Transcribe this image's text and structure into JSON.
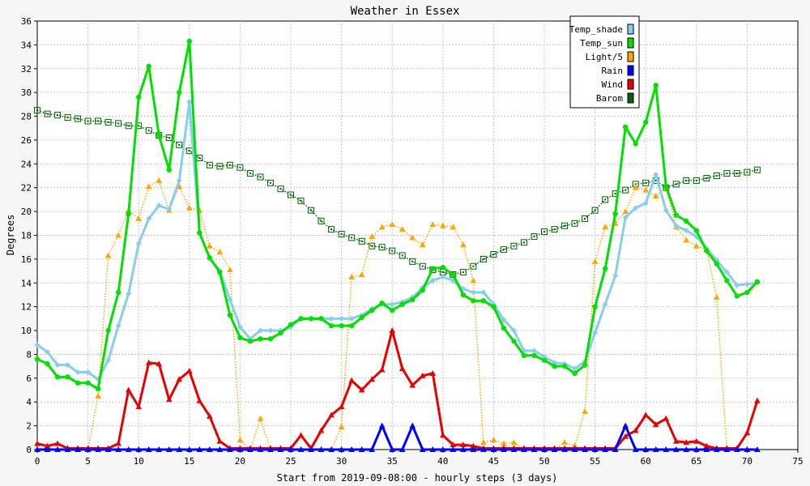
{
  "chart_data": {
    "type": "line",
    "title": "Weather in Essex",
    "xlabel": "Start from 2019-09-08:00 - hourly steps (3 days)",
    "ylabel": "Degrees",
    "xlim": [
      0,
      75
    ],
    "ylim": [
      0,
      36
    ],
    "xticks": [
      0,
      5,
      10,
      15,
      20,
      25,
      30,
      35,
      40,
      45,
      50,
      55,
      60,
      65,
      70,
      75
    ],
    "yticks": [
      0,
      2,
      4,
      6,
      8,
      10,
      12,
      14,
      16,
      18,
      20,
      22,
      24,
      26,
      28,
      30,
      32,
      34,
      36
    ],
    "grid": true,
    "legend_position": "top-right",
    "series": [
      {
        "name": "Temp_shade",
        "color": "#87ceeb",
        "marker": "diamond",
        "line": "solid",
        "width": 3,
        "values": [
          8.8,
          8.2,
          7.1,
          7.1,
          6.5,
          6.5,
          5.9,
          7.5,
          10.4,
          13.1,
          17.3,
          19.4,
          20.5,
          20.2,
          22.6,
          29.2,
          18.2,
          16.1,
          15.0,
          12.6,
          10.3,
          9.3,
          10.0,
          10.0,
          10.0,
          10.3,
          11.0,
          11.0,
          11.0,
          11.0,
          11.0,
          11.0,
          11.3,
          11.8,
          12.2,
          12.2,
          12.4,
          12.8,
          13.6,
          14.2,
          14.5,
          14.2,
          13.5,
          13.2,
          13.2,
          12.2,
          10.9,
          10.0,
          8.3,
          8.3,
          7.8,
          7.3,
          7.2,
          6.8,
          7.4,
          9.8,
          12.2,
          14.6,
          19.5,
          20.3,
          20.7,
          23.1,
          20.1,
          18.8,
          18.4,
          17.9,
          16.9,
          15.9,
          14.9,
          13.8,
          13.9,
          14.0
        ]
      },
      {
        "name": "Temp_sun",
        "color": "#00e000",
        "marker": "circle",
        "line": "solid",
        "width": 3,
        "values": [
          7.6,
          7.2,
          6.1,
          6.1,
          5.6,
          5.6,
          5.1,
          10.0,
          13.2,
          19.8,
          29.6,
          32.2,
          26.4,
          23.5,
          30.0,
          34.3,
          18.2,
          16.1,
          14.9,
          11.3,
          9.4,
          9.1,
          9.3,
          9.3,
          9.8,
          10.5,
          11.0,
          11.0,
          11.0,
          10.4,
          10.4,
          10.4,
          11.1,
          11.7,
          12.3,
          11.7,
          12.2,
          12.6,
          13.4,
          15.2,
          15.3,
          14.7,
          13.0,
          12.5,
          12.5,
          12.0,
          10.2,
          9.1,
          7.9,
          7.9,
          7.5,
          7.0,
          7.0,
          6.4,
          7.1,
          12.0,
          15.2,
          19.8,
          27.1,
          25.7,
          27.5,
          30.6,
          22.1,
          19.7,
          19.2,
          18.4,
          16.7,
          15.6,
          14.2,
          12.9,
          13.2,
          14.1
        ]
      },
      {
        "name": "Light/5",
        "color": "#ffa500",
        "marker": "triangle",
        "line": "dotted",
        "width": 1.5,
        "values": [
          0,
          0,
          0,
          0,
          0,
          0,
          4.5,
          16.3,
          18.0,
          20.1,
          19.4,
          22.1,
          22.6,
          20.1,
          22.1,
          20.3,
          20.1,
          17.1,
          16.6,
          15.1,
          0.8,
          0,
          2.6,
          0,
          0,
          0,
          0,
          0,
          0,
          0,
          1.9,
          14.5,
          14.7,
          17.9,
          18.7,
          18.9,
          18.5,
          17.8,
          17.2,
          18.9,
          18.8,
          18.7,
          17.2,
          14.2,
          0.6,
          0.8,
          0.5,
          0.6,
          0,
          0,
          0,
          0,
          0.6,
          0.3,
          3.2,
          15.8,
          18.7,
          19.0,
          20.0,
          22.0,
          21.8,
          21.3,
          22.0,
          18.7,
          17.6,
          17.1,
          16.8,
          12.8,
          0,
          0,
          0,
          0
        ]
      },
      {
        "name": "Rain",
        "color": "#0000ff",
        "marker": "triangle",
        "line": "solid",
        "width": 3,
        "values": [
          0,
          0,
          0,
          0,
          0,
          0,
          0,
          0,
          0,
          0,
          0,
          0,
          0,
          0,
          0,
          0,
          0,
          0,
          0,
          0,
          0,
          0,
          0,
          0,
          0,
          0,
          0,
          0,
          0,
          0,
          0,
          0,
          0,
          0,
          2.0,
          0,
          0,
          2.0,
          0,
          0,
          0,
          0,
          0,
          0,
          0,
          0,
          0,
          0,
          0,
          0,
          0,
          0,
          0,
          0,
          0,
          0,
          0,
          0,
          2.0,
          0,
          0,
          0,
          0,
          0,
          0,
          0,
          0,
          0,
          0,
          0,
          0,
          0
        ]
      },
      {
        "name": "Wind",
        "color": "#e80000",
        "marker": "triangle",
        "line": "solid",
        "width": 3,
        "values": [
          0.5,
          0.3,
          0.5,
          0.1,
          0.1,
          0.1,
          0.1,
          0.1,
          0.5,
          5.0,
          3.6,
          7.3,
          7.2,
          4.2,
          5.9,
          6.6,
          4.1,
          2.8,
          0.7,
          0.1,
          0.1,
          0.1,
          0.1,
          0.1,
          0.1,
          0.1,
          1.2,
          0.1,
          1.6,
          2.9,
          3.6,
          5.8,
          5.0,
          5.9,
          6.7,
          10.0,
          6.8,
          5.4,
          6.2,
          6.4,
          1.2,
          0.4,
          0.4,
          0.3,
          0.1,
          0.1,
          0.1,
          0.1,
          0.1,
          0.1,
          0.1,
          0.1,
          0.1,
          0.1,
          0.1,
          0.1,
          0.1,
          0.1,
          1.1,
          1.6,
          2.9,
          2.1,
          2.6,
          0.7,
          0.6,
          0.7,
          0.3,
          0.1,
          0.1,
          0.1,
          1.4,
          4.1
        ]
      },
      {
        "name": "Barom",
        "color": "#006400",
        "marker": "square",
        "line": "dotted",
        "width": 1.5,
        "values": [
          28.5,
          28.2,
          28.1,
          27.9,
          27.8,
          27.6,
          27.6,
          27.5,
          27.4,
          27.2,
          27.2,
          26.8,
          26.4,
          26.2,
          25.6,
          25.1,
          24.5,
          23.9,
          23.8,
          23.9,
          23.7,
          23.2,
          22.9,
          22.4,
          21.9,
          21.4,
          20.9,
          20.1,
          19.2,
          18.5,
          18.1,
          17.8,
          17.5,
          17.1,
          17.0,
          16.7,
          16.3,
          15.8,
          15.4,
          15.1,
          14.9,
          14.7,
          14.9,
          15.4,
          16.0,
          16.4,
          16.8,
          17.1,
          17.4,
          17.9,
          18.3,
          18.5,
          18.8,
          19.0,
          19.4,
          20.1,
          21.0,
          21.5,
          21.8,
          22.3,
          22.4,
          22.6,
          22.0,
          22.3,
          22.6,
          22.6,
          22.8,
          23.0,
          23.2,
          23.2,
          23.3,
          23.5
        ]
      }
    ]
  }
}
